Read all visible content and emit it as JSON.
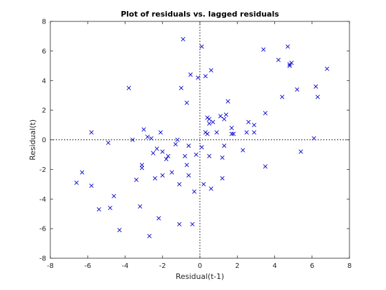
{
  "chart_data": {
    "type": "scatter",
    "title": "Plot of residuals vs. lagged residuals",
    "xlabel": "Residual(t-1)",
    "ylabel": "Residual(t)",
    "xlim": [
      -8,
      8
    ],
    "ylim": [
      -8,
      8
    ],
    "xticks": [
      -8,
      -6,
      -4,
      -2,
      0,
      2,
      4,
      6,
      8
    ],
    "yticks": [
      -8,
      -6,
      -4,
      -2,
      0,
      2,
      4,
      6,
      8
    ],
    "grid": false,
    "reference_lines": [
      "x = 0 (dotted)",
      "y = 0 (dotted)"
    ],
    "marker": "x",
    "marker_color": "#0000cc",
    "series": [
      {
        "x": [
          -6.6,
          -6.3,
          -5.8,
          -5.8,
          -5.4,
          -4.9,
          -4.8,
          -4.6,
          -4.3,
          -3.8,
          -3.6,
          -3.4,
          -3.2,
          -3.1,
          -3.1,
          -3.0,
          -2.8,
          -2.7,
          -2.6,
          -2.5,
          -2.4,
          -2.3,
          -2.2,
          -2.1,
          -2.0,
          -2.0,
          -1.8,
          -1.7,
          -1.5,
          -1.3,
          -1.2,
          -1.1,
          -1.1,
          -1.0,
          -0.9,
          -0.8,
          -0.7,
          -0.7,
          -0.6,
          -0.6,
          -0.5,
          -0.4,
          -0.3,
          -0.2,
          -0.1,
          0.1,
          0.1,
          0.2,
          0.3,
          0.3,
          0.4,
          0.4,
          0.5,
          0.5,
          0.5,
          0.6,
          0.6,
          0.7,
          0.9,
          1.1,
          1.2,
          1.2,
          1.3,
          1.3,
          1.4,
          1.5,
          1.7,
          1.7,
          1.8,
          2.3,
          2.5,
          2.6,
          2.9,
          2.9,
          3.4,
          3.5,
          3.5,
          4.2,
          4.4,
          4.7,
          4.8,
          4.8,
          4.9,
          5.2,
          5.4,
          6.1,
          6.2,
          6.3,
          6.8
        ],
        "y": [
          -2.9,
          -2.2,
          0.5,
          -3.1,
          -4.7,
          -0.2,
          -4.6,
          -3.8,
          -6.1,
          3.5,
          0.0,
          -2.7,
          -4.5,
          -1.7,
          -1.9,
          0.7,
          0.2,
          -6.5,
          0.1,
          -0.9,
          -2.6,
          -0.6,
          -5.3,
          0.5,
          -0.8,
          -2.4,
          -1.3,
          -1.1,
          -2.2,
          -0.3,
          0.0,
          -3.0,
          -5.7,
          3.5,
          6.8,
          -1.1,
          -1.7,
          2.5,
          -2.4,
          -0.4,
          4.4,
          -5.7,
          -3.5,
          -1.0,
          4.2,
          6.3,
          -0.5,
          -3.0,
          0.5,
          4.3,
          0.4,
          1.5,
          -1.1,
          1.1,
          1.4,
          -3.3,
          4.7,
          1.2,
          0.5,
          1.6,
          -1.2,
          -2.6,
          -0.4,
          1.4,
          1.7,
          2.6,
          0.4,
          0.8,
          0.4,
          -0.7,
          0.5,
          1.2,
          1.0,
          0.5,
          6.1,
          1.8,
          -1.8,
          5.4,
          2.9,
          6.3,
          5.0,
          5.1,
          5.2,
          3.4,
          -0.8,
          0.1,
          3.6,
          2.9,
          4.8
        ]
      }
    ]
  }
}
